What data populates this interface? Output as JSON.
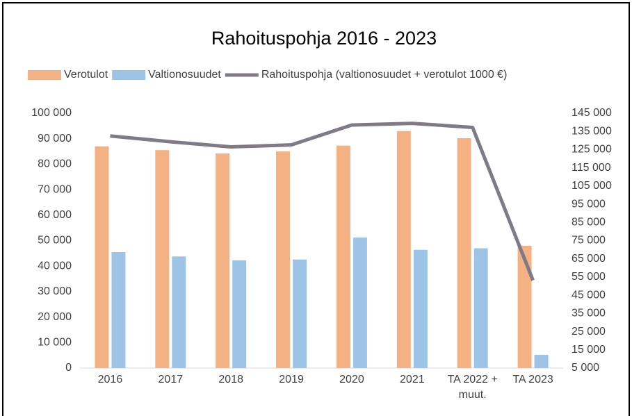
{
  "chart_data": {
    "type": "bar",
    "title": "Rahoituspohja 2016 - 2023",
    "categories": [
      "2016",
      "2017",
      "2018",
      "2019",
      "2020",
      "2021",
      "TA 2022 + muut.",
      "TA 2023"
    ],
    "series": [
      {
        "name": "Verotulot",
        "color": "#f4b183",
        "type": "bar",
        "values": [
          87000,
          85500,
          84200,
          85000,
          87300,
          93000,
          90200,
          48000
        ]
      },
      {
        "name": "Valtionosuudet",
        "color": "#9dc3e6",
        "type": "bar",
        "values": [
          45500,
          43800,
          42300,
          42600,
          51200,
          46400,
          47000,
          5200
        ]
      },
      {
        "name": "Rahoituspohja (valtionosuudet + verotulot 1000 €)",
        "color": "#807a86",
        "type": "line",
        "axis": "y2",
        "values": [
          132500,
          129300,
          126500,
          127600,
          138500,
          139400,
          137200,
          53200
        ]
      }
    ],
    "ylim": [
      0,
      100000
    ],
    "yticks": [
      0,
      {
        "value": 10000,
        "label": "10 000"
      },
      {
        "value": 20000,
        "label": "20 000"
      },
      {
        "value": 30000,
        "label": "30 000"
      },
      {
        "value": 40000,
        "label": "40 000"
      },
      {
        "value": 50000,
        "label": "50 000"
      },
      {
        "value": 60000,
        "label": "60 000"
      },
      {
        "value": 70000,
        "label": "70 000"
      },
      {
        "value": 80000,
        "label": "80 000"
      },
      {
        "value": 90000,
        "label": "90 000"
      },
      {
        "value": 100000,
        "label": "100 000"
      }
    ],
    "y2lim": [
      5000,
      145000
    ],
    "y2ticks": [
      {
        "value": 5000,
        "label": "5 000"
      },
      {
        "value": 15000,
        "label": "15 000"
      },
      {
        "value": 25000,
        "label": "25 000"
      },
      {
        "value": 35000,
        "label": "35 000"
      },
      {
        "value": 45000,
        "label": "45 000"
      },
      {
        "value": 55000,
        "label": "55 000"
      },
      {
        "value": 65000,
        "label": "65 000"
      },
      {
        "value": 75000,
        "label": "75 000"
      },
      {
        "value": 85000,
        "label": "85 000"
      },
      {
        "value": 95000,
        "label": "95 000"
      },
      {
        "value": 105000,
        "label": "105 000"
      },
      {
        "value": 115000,
        "label": "115 000"
      },
      {
        "value": 125000,
        "label": "125 000"
      },
      {
        "value": 135000,
        "label": "135 000"
      },
      {
        "value": 145000,
        "label": "145 000"
      }
    ],
    "grid": false,
    "legend": "top"
  }
}
